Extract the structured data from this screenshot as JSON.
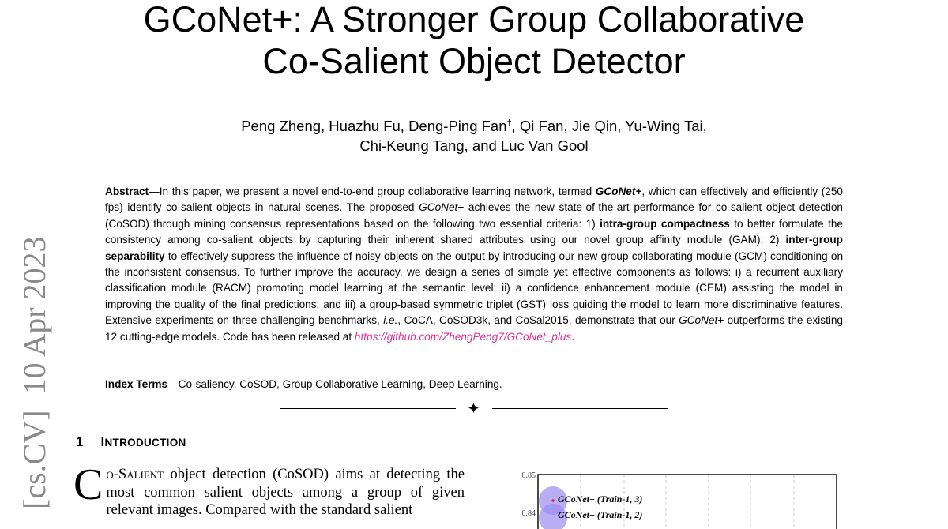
{
  "stamp": "[cs.CV]  10 Apr 2023",
  "title": {
    "line1": "GCoNet+: A Stronger Group Collaborative",
    "line2": "Co-Salient Object Detector"
  },
  "authors": {
    "line1_a": "Peng Zheng, Huazhu Fu, Deng-Ping Fan",
    "dagger": "†",
    "line1_b": ", Qi Fan, Jie Qin, Yu-Wing Tai,",
    "line2": "Chi-Keung Tang, and Luc Van Gool"
  },
  "abstract": [
    {
      "t": "Abstract",
      "s": "b"
    },
    {
      "t": "—In this paper, we present a novel end-to-end group collaborative learning network, termed ",
      "s": ""
    },
    {
      "t": "GCoNet+",
      "s": "bi"
    },
    {
      "t": ", which can effectively and efficiently (250 fps) identify co-salient objects in natural scenes. The proposed ",
      "s": ""
    },
    {
      "t": "GCoNet+",
      "s": "i"
    },
    {
      "t": " achieves the new state-of-the-art performance for co-salient object detection (CoSOD) through mining consensus representations based on the following two essential criteria: 1) ",
      "s": ""
    },
    {
      "t": "intra-group compactness",
      "s": "b"
    },
    {
      "t": " to better formulate the consistency among co-salient objects by capturing their inherent shared attributes using our novel group affinity module (GAM); 2) ",
      "s": ""
    },
    {
      "t": "inter-group separability",
      "s": "b"
    },
    {
      "t": " to effectively suppress the influence of noisy objects on the output by introducing our new group collaborating module (GCM) conditioning on the inconsistent consensus. To further improve the accuracy, we design a series of simple yet effective components as follows: i) a recurrent auxiliary classification module (RACM) promoting model learning at the semantic level; ii) a confidence enhancement module (CEM) assisting the model in improving the quality of the final predictions; and iii) a group-based symmetric triplet (GST) loss guiding the model to learn more discriminative features. Extensive experiments on three challenging benchmarks, ",
      "s": ""
    },
    {
      "t": "i.e.",
      "s": "i"
    },
    {
      "t": ", CoCA, CoSOD3k, and CoSal2015, demonstrate that our ",
      "s": ""
    },
    {
      "t": "GCoNet+",
      "s": "i"
    },
    {
      "t": " outperforms the existing 12 cutting-edge models. Code has been released at ",
      "s": ""
    },
    {
      "t": "https://github.com/ZhengPeng7/GCoNet_plus",
      "s": "link"
    },
    {
      "t": ".",
      "s": ""
    }
  ],
  "index_terms": {
    "label": "Index Terms",
    "text": "—Co-saliency, CoSOD, Group Collaborative Learning, Deep Learning."
  },
  "separator_glyph": "✦",
  "section": {
    "number": "1",
    "title": "Introduction"
  },
  "intro": {
    "dropcap": "C",
    "smallcaps": "o-Salient",
    "text": " object detection (CoSOD) aims at detecting the most common salient objects among a group of given relevant images. Compared with the standard salient"
  },
  "figure": {
    "y_ticks": [
      "0.85",
      "0.84"
    ],
    "labels": [
      "GCoNet+ (Train-1, 3)",
      "GCoNet+ (Train-1, 2)"
    ],
    "bubble_color": "#9b8cf0",
    "point_color": "#d0104c"
  }
}
